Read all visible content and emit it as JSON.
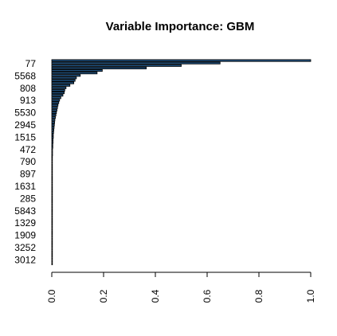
{
  "chart_data": {
    "type": "bar",
    "orientation": "horizontal",
    "title": "Variable Importance: GBM",
    "xlabel": "",
    "ylabel": "",
    "xlim": [
      0,
      1
    ],
    "x_ticks": [
      "0.0",
      "0.2",
      "0.4",
      "0.6",
      "0.8",
      "1.0"
    ],
    "visible_category_labels": [
      "77",
      "5568",
      "808",
      "913",
      "5530",
      "2945",
      "1515",
      "472",
      "790",
      "897",
      "1631",
      "285",
      "5843",
      "1329",
      "1909",
      "3252",
      "3012"
    ],
    "values": [
      1.0,
      0.65,
      0.5,
      0.365,
      0.195,
      0.175,
      0.11,
      0.095,
      0.09,
      0.085,
      0.07,
      0.055,
      0.05,
      0.048,
      0.043,
      0.035,
      0.03,
      0.027,
      0.024,
      0.022,
      0.02,
      0.018,
      0.016,
      0.014,
      0.012,
      0.011,
      0.01,
      0.009,
      0.008,
      0.007,
      0.006,
      0.006,
      0.005,
      0.005,
      0.004,
      0.004,
      0.003,
      0.003,
      0.003,
      0.002,
      0.002,
      0.002,
      0.002,
      0.002,
      0.001,
      0.001,
      0.001,
      0.001,
      0.001,
      0.001,
      0.001,
      0.001,
      0.001,
      0.001,
      0.001,
      0.001,
      0.001,
      0.001,
      0.001,
      0.001,
      0.001,
      0.001,
      0.001,
      0.001,
      0.001,
      0.001,
      0.001,
      0.001,
      0.001,
      0.001,
      0.001,
      0.001,
      0.001,
      0.001,
      0.001,
      0.001,
      0.001,
      0.001,
      0.001,
      0.001,
      0.001,
      0.001,
      0.001
    ],
    "bar_color": "#1f4e79",
    "grid": false,
    "legend": "none"
  }
}
